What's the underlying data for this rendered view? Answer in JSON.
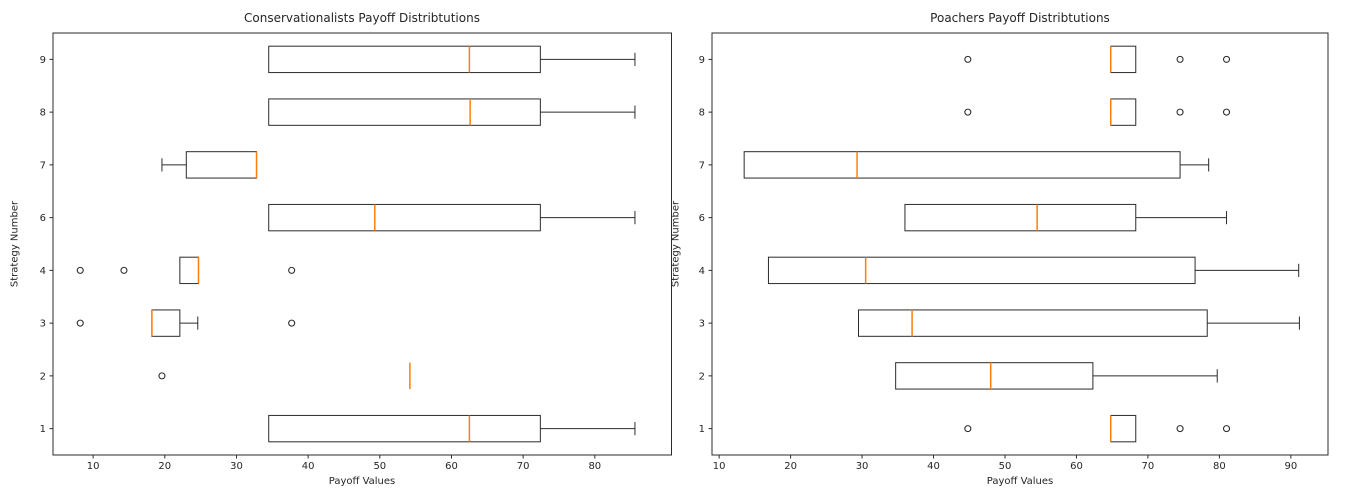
{
  "figure_title": "",
  "colors": {
    "line": "#2b2b2b",
    "median": "#ff7f0e",
    "text": "#262626",
    "background": "#ffffff"
  },
  "chart_data": [
    {
      "type": "boxplot",
      "orientation": "horizontal",
      "title": "Conservationalists Payoff Distribtutions",
      "xlabel": "Payoff Values",
      "ylabel": "Strategy Number",
      "xlim": [
        4.4,
        90.7
      ],
      "xticks": [
        10,
        20,
        30,
        40,
        50,
        60,
        70,
        80
      ],
      "ylim": [
        0.5,
        8.5
      ],
      "grid": false,
      "legend": "none",
      "boxes": [
        {
          "label": "1",
          "pos": 1,
          "whislo": 34.5,
          "q1": 34.5,
          "med": 62.5,
          "q3": 72.4,
          "whishi": 85.6,
          "fliers": []
        },
        {
          "label": "2",
          "pos": 2,
          "whislo": 54.2,
          "q1": 54.2,
          "med": 54.2,
          "q3": 54.2,
          "whishi": 54.2,
          "fliers": [
            19.6
          ]
        },
        {
          "label": "3",
          "pos": 3,
          "whislo": 18.2,
          "q1": 18.2,
          "med": 18.2,
          "q3": 22.1,
          "whishi": 24.6,
          "fliers": [
            8.2,
            37.7
          ]
        },
        {
          "label": "4",
          "pos": 4,
          "whislo": 22.1,
          "q1": 22.1,
          "med": 24.7,
          "q3": 24.7,
          "whishi": 24.7,
          "fliers": [
            8.2,
            14.3,
            37.7
          ]
        },
        {
          "label": "6",
          "pos": 5,
          "whislo": 34.5,
          "q1": 34.5,
          "med": 49.3,
          "q3": 72.4,
          "whishi": 85.6,
          "fliers": []
        },
        {
          "label": "7",
          "pos": 6,
          "whislo": 19.6,
          "q1": 23.0,
          "med": 32.8,
          "q3": 32.8,
          "whishi": 32.8,
          "fliers": []
        },
        {
          "label": "8",
          "pos": 7,
          "whislo": 34.5,
          "q1": 34.5,
          "med": 62.6,
          "q3": 72.4,
          "whishi": 85.6,
          "fliers": []
        },
        {
          "label": "9",
          "pos": 8,
          "whislo": 34.5,
          "q1": 34.5,
          "med": 62.5,
          "q3": 72.4,
          "whishi": 85.6,
          "fliers": []
        }
      ]
    },
    {
      "type": "boxplot",
      "orientation": "horizontal",
      "title": "Poachers Payoff Distribtutions",
      "xlabel": "Payoff Values",
      "ylabel": "Strategy Number",
      "xlim": [
        9.0,
        95.2
      ],
      "xticks": [
        10,
        20,
        30,
        40,
        50,
        60,
        70,
        80,
        90
      ],
      "ylim": [
        0.5,
        8.5
      ],
      "grid": false,
      "legend": "none",
      "boxes": [
        {
          "label": "1",
          "pos": 1,
          "whislo": 64.8,
          "q1": 64.8,
          "med": 64.8,
          "q3": 68.3,
          "whishi": 68.3,
          "fliers": [
            44.8,
            74.5,
            81.0
          ]
        },
        {
          "label": "2",
          "pos": 2,
          "whislo": 34.7,
          "q1": 34.7,
          "med": 48.0,
          "q3": 62.3,
          "whishi": 79.7,
          "fliers": []
        },
        {
          "label": "3",
          "pos": 3,
          "whislo": 29.5,
          "q1": 29.5,
          "med": 37.0,
          "q3": 78.3,
          "whishi": 91.2,
          "fliers": []
        },
        {
          "label": "4",
          "pos": 4,
          "whislo": 16.9,
          "q1": 16.9,
          "med": 30.5,
          "q3": 76.6,
          "whishi": 91.1,
          "fliers": []
        },
        {
          "label": "6",
          "pos": 5,
          "whislo": 36.0,
          "q1": 36.0,
          "med": 54.5,
          "q3": 68.3,
          "whishi": 81.0,
          "fliers": []
        },
        {
          "label": "7",
          "pos": 6,
          "whislo": 13.5,
          "q1": 13.5,
          "med": 29.3,
          "q3": 74.5,
          "whishi": 78.5,
          "fliers": []
        },
        {
          "label": "8",
          "pos": 7,
          "whislo": 64.8,
          "q1": 64.8,
          "med": 64.8,
          "q3": 68.3,
          "whishi": 68.3,
          "fliers": [
            44.8,
            74.5,
            81.0
          ]
        },
        {
          "label": "9",
          "pos": 8,
          "whislo": 64.8,
          "q1": 64.8,
          "med": 64.8,
          "q3": 68.3,
          "whishi": 68.3,
          "fliers": [
            44.8,
            74.5,
            81.0
          ]
        }
      ]
    }
  ]
}
